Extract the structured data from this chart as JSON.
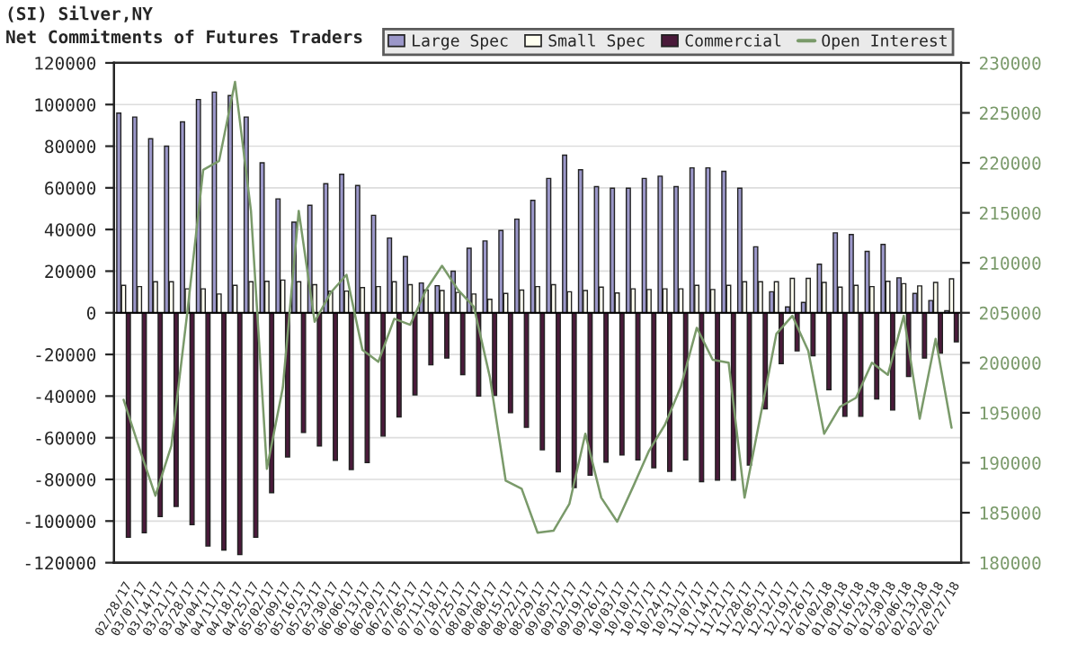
{
  "chart_data": {
    "type": "bar",
    "title": "(SI) Silver,NY",
    "subtitle": "Net Commitments of Futures Traders",
    "categories": [
      "02/28/17",
      "03/07/17",
      "03/14/17",
      "03/21/17",
      "03/28/17",
      "04/04/17",
      "04/11/17",
      "04/18/17",
      "04/25/17",
      "05/02/17",
      "05/09/17",
      "05/16/17",
      "05/23/17",
      "05/30/17",
      "06/06/17",
      "06/13/17",
      "06/20/17",
      "06/27/17",
      "07/05/17",
      "07/11/17",
      "07/18/17",
      "07/25/17",
      "08/01/17",
      "08/08/17",
      "08/15/17",
      "08/22/17",
      "08/29/17",
      "09/05/17",
      "09/12/17",
      "09/19/17",
      "09/26/17",
      "10/03/17",
      "10/10/17",
      "10/17/17",
      "10/24/17",
      "10/31/17",
      "11/07/17",
      "11/14/17",
      "11/21/17",
      "11/28/17",
      "12/05/17",
      "12/12/17",
      "12/19/17",
      "12/26/17",
      "01/02/18",
      "01/09/18",
      "01/16/18",
      "01/23/18",
      "01/30/18",
      "02/06/18",
      "02/13/18",
      "02/20/18",
      "02/27/18"
    ],
    "series": [
      {
        "name": "Large Spec",
        "color": "#9b97c9",
        "values": [
          95900,
          94000,
          83600,
          80000,
          91700,
          102400,
          106000,
          104300,
          94000,
          72000,
          54700,
          43500,
          51600,
          62000,
          66500,
          61100,
          46800,
          35900,
          27000,
          14300,
          13000,
          20000,
          31000,
          34500,
          39500,
          45000,
          54000,
          64500,
          75700,
          68700,
          60600,
          59800,
          59800,
          64500,
          65600,
          60600,
          69600,
          69600,
          67900,
          59800,
          31700,
          10100,
          2800,
          5000,
          23300,
          38400,
          37600,
          29500,
          32800,
          16800,
          9300,
          5900,
          1000
        ]
      },
      {
        "name": "Small Spec",
        "color": "#fffff0",
        "values": [
          13200,
          12600,
          14900,
          14900,
          11500,
          11500,
          9000,
          13200,
          14900,
          15100,
          15700,
          14900,
          13500,
          10400,
          10400,
          12100,
          12600,
          14900,
          13500,
          10900,
          10700,
          9800,
          9000,
          6500,
          9300,
          10900,
          12600,
          13500,
          10100,
          10700,
          12300,
          9500,
          11500,
          11200,
          11500,
          11500,
          13200,
          11200,
          13200,
          14900,
          14900,
          14900,
          16500,
          16500,
          14600,
          12300,
          13200,
          12600,
          15100,
          14000,
          12900,
          14600,
          16300
        ]
      },
      {
        "name": "Commercial",
        "color": "#4a1a3a",
        "values": [
          -107800,
          -105600,
          -97800,
          -93000,
          -101700,
          -112000,
          -113900,
          -116100,
          -107800,
          -86400,
          -69200,
          -57500,
          -63900,
          -70800,
          -75300,
          -71900,
          -59200,
          -50000,
          -39400,
          -25000,
          -21700,
          -29700,
          -40000,
          -39700,
          -48000,
          -55000,
          -65800,
          -76400,
          -83900,
          -78000,
          -71700,
          -68300,
          -70600,
          -74400,
          -76100,
          -70600,
          -81100,
          -80300,
          -80300,
          -73100,
          -46100,
          -24400,
          -18300,
          -20600,
          -36900,
          -49700,
          -49700,
          -41400,
          -46700,
          -30600,
          -21700,
          -19400,
          -13900
        ]
      },
      {
        "name": "Open Interest",
        "type": "line",
        "axis": "y2",
        "color": "#7a9a6a",
        "values": [
          196300,
          191400,
          186700,
          191700,
          205000,
          219300,
          220200,
          228100,
          215200,
          189400,
          197500,
          215200,
          204100,
          207000,
          208800,
          201300,
          200100,
          204400,
          203800,
          207300,
          209700,
          207300,
          205600,
          198600,
          188200,
          187400,
          183000,
          183200,
          185900,
          192900,
          186500,
          184100,
          187600,
          191200,
          193800,
          197600,
          203500,
          200300,
          200000,
          186500,
          194700,
          202900,
          204700,
          201200,
          192900,
          195600,
          196500,
          200000,
          198800,
          204700,
          194400,
          202400,
          193500
        ]
      }
    ],
    "ylim": [
      -120000,
      120000
    ],
    "yticks": [
      -120000,
      -100000,
      -80000,
      -60000,
      -40000,
      -20000,
      0,
      20000,
      40000,
      60000,
      80000,
      100000,
      120000
    ],
    "y2lim": [
      180000,
      230000
    ],
    "y2ticks": [
      180000,
      185000,
      190000,
      195000,
      200000,
      205000,
      210000,
      215000,
      220000,
      225000,
      230000
    ],
    "grid": "y",
    "legend": "top right",
    "marker": "none",
    "line_style": "solid"
  }
}
